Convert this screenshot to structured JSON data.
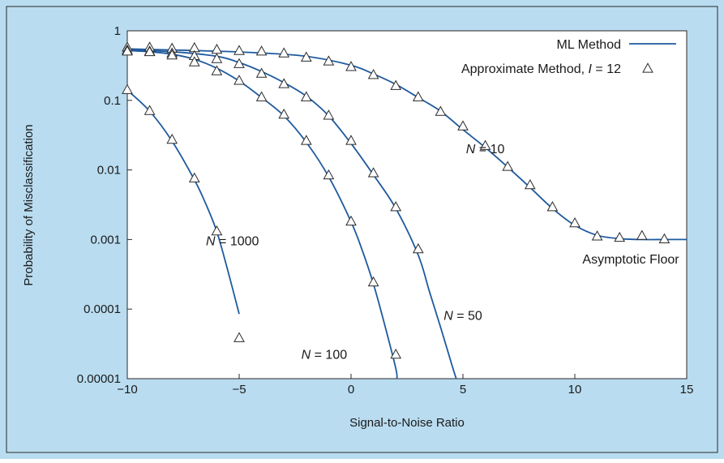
{
  "colors": {
    "outer_background": "#b9dcf0",
    "plot_background": "#ffffff",
    "border": "#2a2a2a",
    "curve": "#1f5a9e",
    "marker": "#2a2a2a",
    "text": "#1a1a1a"
  },
  "chart_data": {
    "type": "line",
    "title": "",
    "xlabel": "Signal-to-Noise Ratio",
    "ylabel": "Probability of Misclassification",
    "xlim": [
      -10,
      15
    ],
    "ylim": [
      1e-05,
      1
    ],
    "yscale": "log",
    "grid": false,
    "legend_position": "top-right",
    "x_ticks": [
      -10,
      -5,
      0,
      5,
      10,
      15
    ],
    "x_tick_labels": [
      "−10",
      "−5",
      "0",
      "5",
      "10",
      "15"
    ],
    "y_ticks": [
      1e-05,
      0.0001,
      0.001,
      0.01,
      0.1,
      1
    ],
    "y_tick_labels": [
      "0.00001",
      "0.0001",
      "0.001",
      "0.01",
      "0.1",
      "1"
    ],
    "legend": [
      {
        "label": "ML Method",
        "style": "line"
      },
      {
        "label_prefix": "Approximate Method, ",
        "label_italic": "I",
        "label_suffix": " = 12",
        "style": "triangle"
      }
    ],
    "annotations": [
      {
        "italic": "N",
        "rest": " = 10",
        "x": 6,
        "y": 0.02
      },
      {
        "italic": "N",
        "rest": " = 50",
        "x": 5,
        "y": 8e-05
      },
      {
        "italic": "N",
        "rest": " = 100",
        "x": -1.2,
        "y": 2.2e-05
      },
      {
        "italic": "N",
        "rest": " = 1000",
        "x": -5.3,
        "y": 0.00094
      },
      {
        "text": "Asymptotic Floor",
        "x": 12.5,
        "y": 0.00052
      }
    ],
    "series": [
      {
        "name": "ML Method",
        "kind": "line",
        "curves": [
          {
            "label": "N = 10",
            "x": [
              -10,
              -8,
              -6,
              -4,
              -2,
              0,
              1,
              2,
              3,
              4,
              5,
              6,
              7,
              8,
              9,
              10,
              11,
              12,
              13,
              14,
              15
            ],
            "y": [
              0.55,
              0.53,
              0.51,
              0.48,
              0.43,
              0.32,
              0.24,
              0.17,
              0.11,
              0.07,
              0.038,
              0.021,
              0.011,
              0.0056,
              0.0028,
              0.0016,
              0.00115,
              0.00103,
              0.001,
              0.001,
              0.001
            ]
          },
          {
            "label": "N = 50",
            "x": [
              -10,
              -8,
              -6,
              -5,
              -4,
              -3,
              -2,
              -1,
              0,
              1,
              2,
              3,
              3.5,
              4,
              4.5,
              4.7
            ],
            "y": [
              0.53,
              0.5,
              0.43,
              0.35,
              0.26,
              0.18,
              0.115,
              0.06,
              0.024,
              0.0085,
              0.0028,
              0.0006,
              0.00018,
              5.5e-05,
              1.6e-05,
              1e-05
            ]
          },
          {
            "label": "N = 100",
            "x": [
              -10,
              -9,
              -8,
              -7,
              -6,
              -5,
              -4,
              -3,
              -2,
              -1,
              0,
              0.5,
              1,
              1.5,
              2,
              2.05
            ],
            "y": [
              0.52,
              0.5,
              0.46,
              0.39,
              0.29,
              0.19,
              0.11,
              0.06,
              0.025,
              0.008,
              0.0018,
              0.0007,
              0.00023,
              6e-05,
              1.4e-05,
              1e-05
            ]
          },
          {
            "label": "N = 1000",
            "x": [
              -10,
              -9,
              -8,
              -7,
              -6.5,
              -6,
              -5.5,
              -5
            ],
            "y": [
              0.14,
              0.07,
              0.026,
              0.0072,
              0.0033,
              0.0013,
              0.00035,
              8.5e-05
            ]
          }
        ]
      },
      {
        "name": "Approximate Method, I = 12",
        "kind": "markers",
        "curves": [
          {
            "label": "N = 10",
            "x": [
              -10,
              -9,
              -8,
              -7,
              -6,
              -5,
              -4,
              -3,
              -2,
              -1,
              0,
              1,
              2,
              3,
              4,
              5,
              6,
              7,
              8,
              9,
              10,
              11,
              12,
              13,
              14
            ],
            "y": [
              0.57,
              0.57,
              0.55,
              0.56,
              0.53,
              0.51,
              0.5,
              0.47,
              0.41,
              0.36,
              0.3,
              0.23,
              0.16,
              0.11,
              0.068,
              0.042,
              0.022,
              0.011,
              0.006,
              0.0029,
              0.0017,
              0.0011,
              0.00105,
              0.00112,
              0.001
            ]
          },
          {
            "label": "N = 50",
            "x": [
              -10,
              -9,
              -8,
              -7,
              -6,
              -5,
              -4,
              -3,
              -2,
              -1,
              0,
              1,
              2,
              3
            ],
            "y": [
              0.52,
              0.5,
              0.47,
              0.43,
              0.39,
              0.33,
              0.24,
              0.17,
              0.11,
              0.06,
              0.026,
              0.0089,
              0.0029,
              0.00072
            ]
          },
          {
            "label": "N = 100",
            "x": [
              -10,
              -9,
              -8,
              -7,
              -6,
              -5,
              -4,
              -3,
              -2,
              -1,
              0,
              1,
              2
            ],
            "y": [
              0.5,
              0.49,
              0.44,
              0.35,
              0.26,
              0.19,
              0.11,
              0.062,
              0.026,
              0.0083,
              0.0018,
              0.00024,
              2.2e-05
            ]
          },
          {
            "label": "N = 1000",
            "x": [
              -10,
              -9,
              -8,
              -7,
              -6,
              -5
            ],
            "y": [
              0.14,
              0.07,
              0.027,
              0.0075,
              0.0013,
              3.8e-05
            ]
          }
        ]
      }
    ]
  }
}
